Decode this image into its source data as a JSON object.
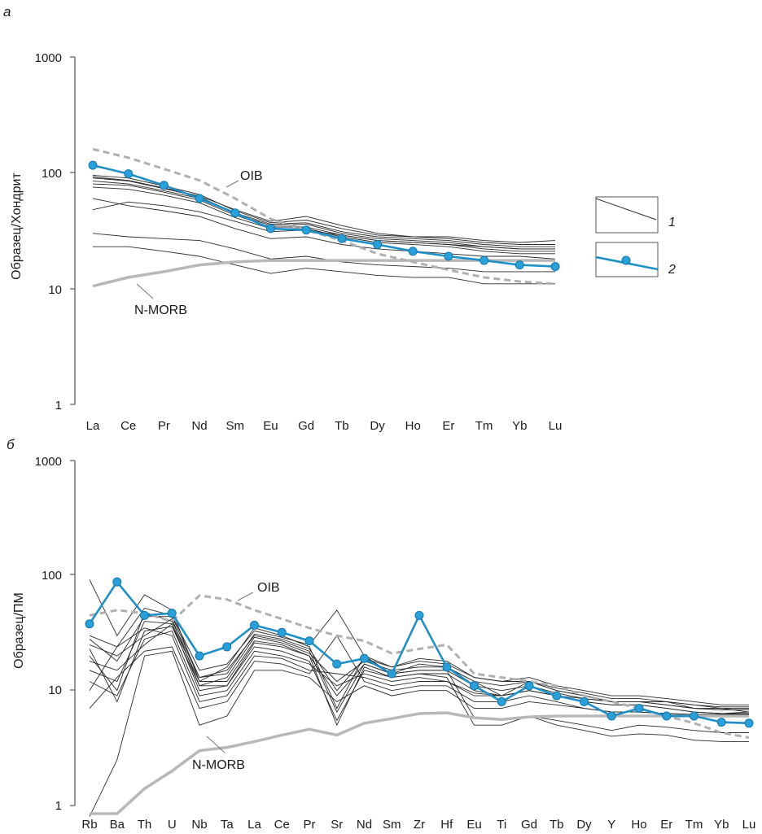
{
  "panel_a_letter": "а",
  "panel_b_letter": "б",
  "legend": {
    "item1": "1",
    "item2": "2"
  },
  "colors": {
    "sample": "#1e8fc7",
    "sample_dot": "#2aa0db",
    "oib": "#b0b0b0",
    "nmorb": "#b8b8b8",
    "others": "#2a2a2a",
    "axis": "#555555"
  },
  "chart_data": [
    {
      "type": "line",
      "ylabel": "Образец/Хондрит",
      "yscale": "log",
      "ylim": [
        1,
        1000
      ],
      "yticks": [
        "1",
        "10",
        "100",
        "1000"
      ],
      "categories": [
        "La",
        "Ce",
        "Pr",
        "Nd",
        "Sm",
        "Eu",
        "Gd",
        "Tb",
        "Dy",
        "Ho",
        "Er",
        "Tm",
        "Yb",
        "Lu"
      ],
      "annotations": [
        "OIB",
        "N-MORB"
      ],
      "legend": [
        {
          "key": "1",
          "style": "thin black line"
        },
        {
          "key": "2",
          "style": "blue line with markers"
        }
      ],
      "series": [
        {
          "name": "2",
          "style": "sample",
          "values": [
            116,
            98,
            78,
            60,
            45,
            33,
            32,
            27,
            24,
            21,
            19,
            17.5,
            16,
            15.5
          ]
        },
        {
          "name": "OIB",
          "style": "oib",
          "values": [
            160,
            135,
            108,
            86,
            60,
            40,
            32,
            26,
            20,
            17,
            14.5,
            12.5,
            11.5,
            11
          ]
        },
        {
          "name": "N-MORB",
          "style": "nmorb",
          "values": [
            10.5,
            12.5,
            14,
            16,
            17,
            17.5,
            17.5,
            17.5,
            17.5,
            17.5,
            17.5,
            17.5,
            17.5,
            17.5
          ]
        },
        {
          "name": "1",
          "style": "others",
          "values": [
            95,
            90,
            77,
            65,
            47,
            37,
            39,
            33,
            29,
            28,
            27,
            25,
            24,
            24
          ]
        },
        {
          "name": "1",
          "style": "others",
          "values": [
            90,
            85,
            73,
            62,
            45,
            36,
            37,
            31,
            28,
            27,
            26,
            24,
            23,
            23
          ]
        },
        {
          "name": "1",
          "style": "others",
          "values": [
            85,
            80,
            70,
            60,
            44,
            35,
            36,
            30,
            27,
            26,
            25,
            23,
            22,
            22
          ]
        },
        {
          "name": "1",
          "style": "others",
          "values": [
            80,
            78,
            68,
            58,
            43,
            34,
            34,
            29,
            26,
            25,
            24,
            22,
            21,
            21
          ]
        },
        {
          "name": "1",
          "style": "others",
          "values": [
            75,
            72,
            64,
            55,
            41,
            33,
            33,
            28,
            25,
            24,
            23,
            21,
            20,
            20
          ]
        },
        {
          "name": "1",
          "style": "others",
          "values": [
            92,
            86,
            74,
            63,
            48,
            38,
            42,
            35,
            30,
            28,
            28,
            26,
            25,
            26
          ]
        },
        {
          "name": "1",
          "style": "others",
          "values": [
            48,
            56,
            52,
            46,
            38,
            31,
            32,
            29,
            26,
            25,
            24,
            23,
            22,
            22
          ]
        },
        {
          "name": "1",
          "style": "others",
          "values": [
            60,
            52,
            47,
            42,
            33,
            27,
            28,
            24,
            22,
            21,
            20,
            19,
            19,
            18
          ]
        },
        {
          "name": "1",
          "style": "others",
          "values": [
            30,
            28,
            27,
            26,
            22,
            18,
            19,
            17,
            16,
            15.5,
            15,
            14,
            14,
            14
          ]
        },
        {
          "name": "1",
          "style": "others",
          "values": [
            23,
            23,
            21,
            19,
            16,
            13.5,
            15,
            14,
            13,
            12.5,
            12.5,
            11,
            11,
            11
          ]
        }
      ]
    },
    {
      "type": "line",
      "ylabel": "Образец/ПМ",
      "yscale": "log",
      "ylim": [
        1,
        1000
      ],
      "yticks": [
        "1",
        "10",
        "100",
        "1000"
      ],
      "categories": [
        "Rb",
        "Ba",
        "Th",
        "U",
        "Nb",
        "Ta",
        "La",
        "Ce",
        "Pr",
        "Sr",
        "Nd",
        "Sm",
        "Zr",
        "Hf",
        "Eu",
        "Ti",
        "Gd",
        "Tb",
        "Dy",
        "Y",
        "Ho",
        "Er",
        "Tm",
        "Yb",
        "Lu"
      ],
      "annotations": [
        "OIB",
        "N-MORB"
      ],
      "series": [
        {
          "name": "2",
          "style": "sample",
          "values": [
            38,
            88,
            45,
            47,
            20,
            24,
            37,
            32,
            27,
            17,
            19,
            14,
            45,
            16,
            11,
            8,
            11,
            9,
            8,
            6,
            7,
            6,
            6,
            5.3,
            5.2
          ]
        },
        {
          "name": "OIB",
          "style": "oib",
          "values": [
            45,
            50,
            47,
            40,
            67,
            62,
            50,
            42,
            35,
            30,
            27,
            21,
            23,
            25,
            14,
            13,
            12,
            11,
            9,
            8,
            7,
            6,
            5.2,
            4.3,
            3.9
          ]
        },
        {
          "name": "N-MORB",
          "style": "nmorb",
          "values": [
            0.85,
            0.85,
            1.4,
            2.0,
            3.0,
            3.2,
            3.6,
            4.1,
            4.6,
            4.1,
            5.2,
            5.7,
            6.3,
            6.4,
            5.8,
            5.6,
            5.9,
            6.0,
            6.0,
            6.0,
            6.0,
            6.0,
            6.0,
            6.0,
            6.0
          ]
        },
        {
          "name": "1",
          "style": "others",
          "values": [
            92,
            30,
            68,
            50,
            12,
            16,
            35,
            30,
            24,
            7,
            20,
            14,
            17,
            16,
            12,
            9,
            12,
            10,
            9,
            8,
            8,
            8,
            7,
            7,
            6.5
          ]
        },
        {
          "name": "1",
          "style": "others",
          "values": [
            20,
            10,
            48,
            40,
            13,
            14,
            31,
            28,
            23,
            10,
            19,
            16,
            18,
            17,
            13,
            12,
            13,
            11,
            10,
            9,
            9,
            8.5,
            8,
            7.5,
            7.5
          ]
        },
        {
          "name": "1",
          "style": "others",
          "values": [
            25,
            20,
            30,
            42,
            11,
            13,
            29,
            26,
            21,
            12,
            18,
            15,
            16,
            16,
            12,
            11,
            12,
            10,
            9,
            8,
            8,
            8,
            7.5,
            7,
            7
          ]
        },
        {
          "name": "1",
          "style": "others",
          "values": [
            15,
            12,
            40,
            38,
            12,
            12,
            27,
            25,
            20,
            9,
            17,
            14,
            15,
            15,
            11,
            10,
            11,
            9.5,
            8.5,
            8,
            8,
            7.5,
            7,
            6.8,
            6.8
          ]
        },
        {
          "name": "1",
          "style": "others",
          "values": [
            30,
            24,
            52,
            45,
            15,
            17,
            33,
            29,
            25,
            50,
            20,
            16,
            19,
            18,
            13,
            12,
            12,
            10.5,
            9.5,
            8.5,
            8.5,
            8,
            7.5,
            7.2,
            7.2
          ]
        },
        {
          "name": "1",
          "style": "others",
          "values": [
            18,
            15,
            25,
            38,
            10,
            11,
            24,
            22,
            18,
            5.5,
            15,
            13,
            14,
            14,
            10,
            9,
            10,
            9,
            8,
            7.5,
            7.5,
            7,
            6.5,
            6.3,
            6.3
          ]
        },
        {
          "name": "1",
          "style": "others",
          "values": [
            10,
            24,
            35,
            30,
            8,
            9,
            20,
            19,
            15,
            14,
            13,
            11,
            12,
            12,
            9,
            9,
            10,
            9,
            8,
            7.5,
            7.5,
            7,
            6.5,
            6.3,
            6.5
          ]
        },
        {
          "name": "1",
          "style": "others",
          "values": [
            7,
            13,
            22,
            24,
            7,
            8,
            18,
            17,
            14,
            30,
            12,
            10,
            11,
            11,
            8,
            8,
            9,
            8,
            7,
            6.5,
            6.5,
            6.3,
            6.1,
            6,
            6
          ]
        },
        {
          "name": "1",
          "style": "others",
          "values": [
            12,
            9,
            28,
            33,
            9,
            10,
            22,
            20,
            17,
            11,
            14,
            12,
            13,
            12,
            9.5,
            9,
            10,
            9,
            8.5,
            8,
            8,
            7.5,
            7,
            6.8,
            6.8
          ]
        },
        {
          "name": "1",
          "style": "others",
          "values": [
            0.8,
            2.5,
            20,
            22,
            5,
            6,
            15,
            15,
            13,
            8,
            11,
            9,
            10,
            10,
            7,
            7,
            8,
            7.5,
            7,
            6.5,
            6.5,
            6.3,
            6.2,
            6.2,
            6.2
          ]
        },
        {
          "name": "1",
          "style": "others",
          "values": [
            23,
            8,
            33,
            36,
            11,
            11,
            26,
            24,
            20,
            5,
            16,
            13,
            14,
            13,
            5,
            5,
            6,
            5.5,
            5,
            4.5,
            5,
            4.8,
            4.5,
            4.3,
            4.3
          ]
        },
        {
          "name": "1",
          "style": "others",
          "values": [
            28,
            18,
            44,
            44,
            13,
            15,
            30,
            27,
            22,
            6.5,
            17,
            14,
            15,
            15,
            5.8,
            5.5,
            6,
            5,
            4.5,
            4,
            4.2,
            4.1,
            3.7,
            3.6,
            3.6
          ]
        }
      ]
    }
  ]
}
